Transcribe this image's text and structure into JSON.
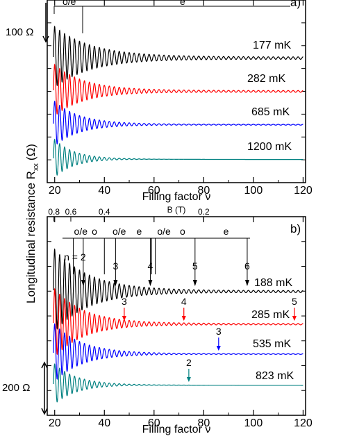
{
  "y_axis_label": "Longitudinal resistance R",
  "y_axis_label_sub": "xx",
  "y_axis_label_unit": "(Ω)",
  "chart_data": [
    {
      "type": "line",
      "panel_label": "a)",
      "xlabel": "Filling factor ν",
      "xlim": [
        17,
        121
      ],
      "xticks": [
        "20",
        "40",
        "60",
        "80",
        "100",
        "120"
      ],
      "scale_bar": "100 Ω",
      "parity_labels": [
        "o/e",
        "e"
      ],
      "series": [
        {
          "name": "177 mK",
          "color": "#000000",
          "offset": 0,
          "amp0": 1.0,
          "decay": 15,
          "floor": 0.04,
          "base_tail": 0.0
        },
        {
          "name": "282 mK",
          "color": "#ff0000",
          "offset": 1,
          "amp0": 0.85,
          "decay": 12,
          "floor": 0.03,
          "base_tail": 0.0
        },
        {
          "name": "685 mK",
          "color": "#0000ff",
          "offset": 2,
          "amp0": 0.75,
          "decay": 10,
          "floor": 0.015,
          "base_tail": 0.0
        },
        {
          "name": "1200 mK",
          "color": "#008080",
          "offset": 3,
          "amp0": 0.65,
          "decay": 8,
          "floor": 0.0,
          "base_tail": 0.0
        }
      ]
    },
    {
      "type": "line",
      "panel_label": "b)",
      "xlabel": "Filling factor ν",
      "xlim": [
        17,
        121
      ],
      "xticks": [
        "20",
        "40",
        "60",
        "80",
        "100",
        "120"
      ],
      "top_axis_label": "B (T)",
      "top_ticks": [
        {
          "label": "0.8",
          "nu": 19.7
        },
        {
          "label": "0.6",
          "nu": 26.5
        },
        {
          "label": "0.4",
          "nu": 40.0
        },
        {
          "label": "0.2",
          "nu": 80.0
        }
      ],
      "scale_bar": "200 Ω",
      "parity_labels": [
        {
          "text": "o/e",
          "nu": 30.5
        },
        {
          "text": "o",
          "nu": 36.0
        },
        {
          "text": "o/e",
          "nu": 46.0
        },
        {
          "text": "e",
          "nu": 54.0
        },
        {
          "text": "o/e",
          "nu": 64.0
        },
        {
          "text": "o",
          "nu": 71.5
        },
        {
          "text": "e",
          "nu": 89.0
        }
      ],
      "n_label_prefix": "n = ",
      "arrows_188": [
        {
          "label": "2",
          "nu": 31.5
        },
        {
          "label": "3",
          "nu": 44.5
        },
        {
          "label": "4",
          "nu": 58.5
        },
        {
          "label": "5",
          "nu": 76.5
        },
        {
          "label": "6",
          "nu": 97.5
        }
      ],
      "arrows_colored": [
        {
          "label": "3",
          "nu": 48.0,
          "series": 1
        },
        {
          "label": "4",
          "nu": 72.0,
          "series": 1
        },
        {
          "label": "5",
          "nu": 116.5,
          "series": 1
        },
        {
          "label": "3",
          "nu": 86.0,
          "series": 2
        },
        {
          "label": "2",
          "nu": 74.0,
          "series": 3
        }
      ],
      "series": [
        {
          "name": "188 mK",
          "color": "#000000",
          "offset": 0,
          "amp0": 1.2,
          "decay": 14,
          "floor": 0.03
        },
        {
          "name": "285 mK",
          "color": "#ff0000",
          "offset": 1,
          "amp0": 1.0,
          "decay": 12,
          "floor": 0.02
        },
        {
          "name": "535 mK",
          "color": "#0000ff",
          "offset": 2,
          "amp0": 0.85,
          "decay": 11,
          "floor": 0.01
        },
        {
          "name": "823 mK",
          "color": "#008080",
          "offset": 3,
          "amp0": 0.6,
          "decay": 9,
          "floor": 0.0
        }
      ]
    }
  ]
}
